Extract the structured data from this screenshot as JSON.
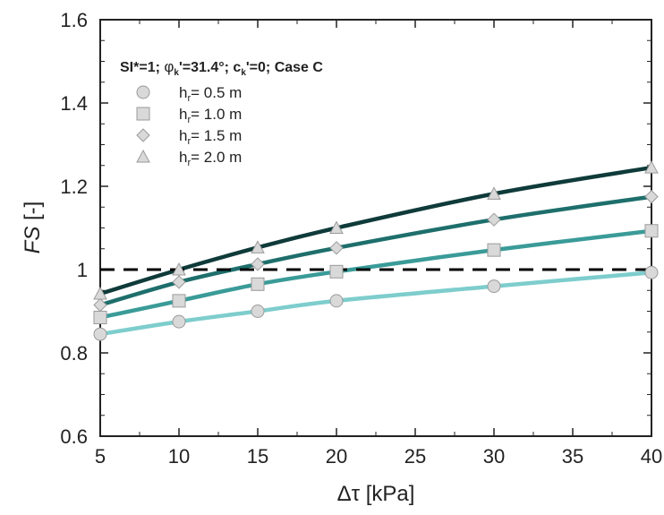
{
  "chart_data": {
    "type": "line",
    "annotation": {
      "prefix": "SI*=1; ",
      "phi": "φ",
      "phi_sub": "k",
      "phi_rest": "'=31.4°; c",
      "c_sub": "k",
      "c_rest": "'=0; Case C"
    },
    "xlabel": "Δτ [kPa]",
    "ylabel_italic": "FS",
    "ylabel_rest": " [-]",
    "xlim": [
      5,
      40
    ],
    "ylim": [
      0.6,
      1.6
    ],
    "xticks": [
      5,
      10,
      15,
      20,
      25,
      30,
      35,
      40
    ],
    "yticks": [
      0.6,
      0.8,
      1,
      1.2,
      1.4,
      1.6
    ],
    "ytick_labels": [
      "0.6",
      "0.8",
      "1",
      "1.2",
      "1.4",
      "1.6"
    ],
    "reference_line": {
      "y": 1.0,
      "style": "dashed",
      "color": "#000000"
    },
    "x": [
      5,
      10,
      15,
      20,
      30,
      40
    ],
    "series": [
      {
        "name_main": "h",
        "name_sub": "r",
        "name_rest": "= 0.5 m",
        "marker": "circle",
        "color": "#7ecdcd",
        "values": [
          0.845,
          0.875,
          0.9,
          0.925,
          0.96,
          0.993
        ]
      },
      {
        "name_main": "h",
        "name_sub": "r",
        "name_rest": "= 1.0 m",
        "marker": "square",
        "color": "#3a9b98",
        "values": [
          0.885,
          0.925,
          0.965,
          0.995,
          1.047,
          1.093
        ]
      },
      {
        "name_main": "h",
        "name_sub": "r",
        "name_rest": "= 1.5 m",
        "marker": "diamond",
        "color": "#1e6f6c",
        "values": [
          0.915,
          0.97,
          1.013,
          1.052,
          1.12,
          1.175
        ]
      },
      {
        "name_main": "h",
        "name_sub": "r",
        "name_rest": "= 2.0 m",
        "marker": "triangle",
        "color": "#0f3b3a",
        "values": [
          0.942,
          1.0,
          1.053,
          1.1,
          1.182,
          1.245
        ]
      }
    ]
  }
}
